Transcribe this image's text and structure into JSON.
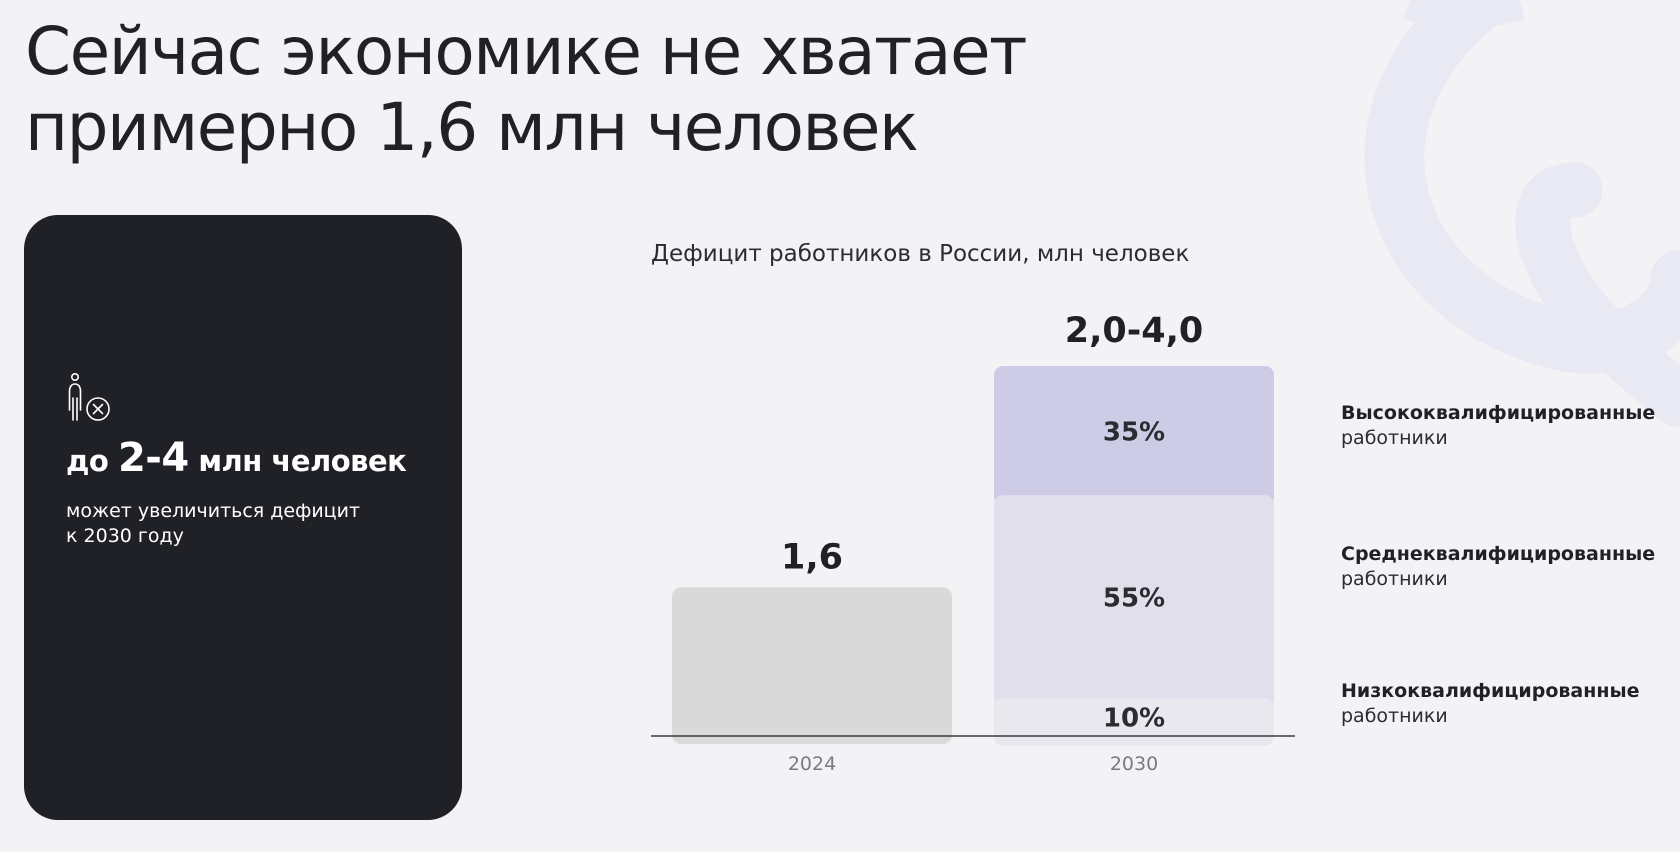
{
  "headline": {
    "line1": "Сейчас экономике не хватает",
    "line2": "примерно 1,6 млн человек"
  },
  "card": {
    "icon": "person-cross-icon",
    "stat_prefix": "до",
    "stat_value": "2-4",
    "stat_suffix": "млн человек",
    "desc_line1": "может увеличиться дефицит",
    "desc_line2": "к 2030 году"
  },
  "chart_data": {
    "type": "bar",
    "title": "Дефицит работников в России, млн человек",
    "categories": [
      "2024",
      "2030"
    ],
    "value_labels": [
      "1,6",
      "2,0-4,0"
    ],
    "ylim": [
      0,
      4.0
    ],
    "bars": [
      {
        "category": "2024",
        "value": 1.6,
        "segments": [
          {
            "share": 1.0,
            "label": ""
          }
        ]
      },
      {
        "category": "2030",
        "value_range": [
          2.0,
          4.0
        ],
        "segments": [
          {
            "share": 0.1,
            "label": "10%"
          },
          {
            "share": 0.55,
            "label": "55%"
          },
          {
            "share": 0.35,
            "label": "35%"
          }
        ]
      }
    ],
    "legend": [
      {
        "name": "Высококвалифицированные",
        "sub": "работники"
      },
      {
        "name": "Среднеквалифицированные",
        "sub": "работники"
      },
      {
        "name": "Низкоквалифицированные",
        "sub": "работники"
      }
    ],
    "legend_position": "right",
    "grid": false,
    "colors": {
      "bar_2024": "#d9d9d9",
      "low": "#e9e8ef",
      "mid": "#e0dfeb",
      "high": "#cdcbe5",
      "axis": "#3a3c42",
      "tick": "#7a7b80"
    }
  },
  "colors": {
    "background": "#f3f3f5",
    "card": "#1f2126",
    "decor": "#e9e9f4"
  }
}
